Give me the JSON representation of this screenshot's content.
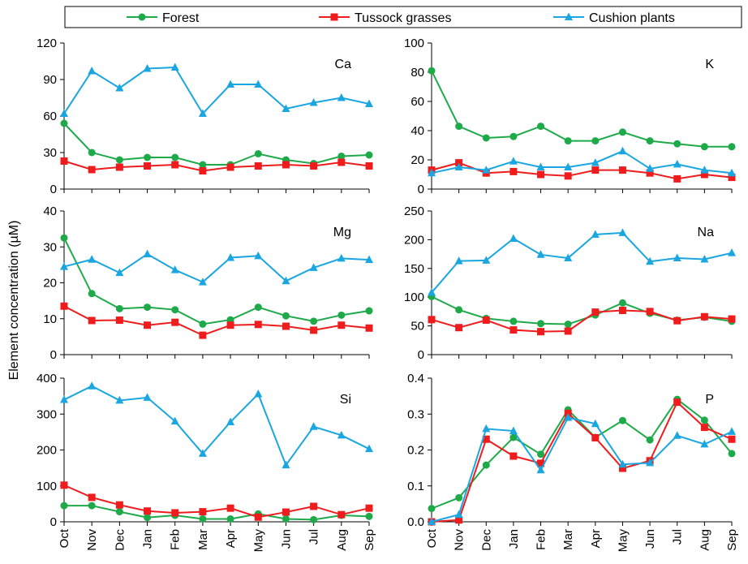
{
  "chart_data": {
    "type": "line",
    "ylabel": "Element concentration (µM)",
    "categories": [
      "Oct",
      "Nov",
      "Dec",
      "Jan",
      "Feb",
      "Mar",
      "Apr",
      "May",
      "Jun",
      "Jul",
      "Aug",
      "Sep"
    ],
    "legend": [
      {
        "name": "Forest",
        "color": "#1faa4a",
        "marker": "circle"
      },
      {
        "name": "Tussock grasses",
        "color": "#ee1c1c",
        "marker": "square"
      },
      {
        "name": "Cushion plants",
        "color": "#1aa6e0",
        "marker": "triangle"
      }
    ],
    "panels": [
      {
        "label": "Ca",
        "ylim": [
          0,
          120
        ],
        "yticks": [
          0,
          30,
          60,
          90,
          120
        ],
        "decimals": 0,
        "series": [
          {
            "name": "Forest",
            "values": [
              54,
              30,
              24,
              26,
              26,
              20,
              20,
              29,
              24,
              21,
              27,
              28
            ]
          },
          {
            "name": "Tussock grasses",
            "values": [
              23,
              16,
              18,
              19,
              20,
              15,
              18,
              19,
              20,
              19,
              22,
              19
            ]
          },
          {
            "name": "Cushion plants",
            "values": [
              62,
              97,
              83,
              99,
              100,
              62,
              86,
              86,
              66,
              71,
              75,
              70
            ]
          }
        ]
      },
      {
        "label": "K",
        "ylim": [
          0,
          100
        ],
        "yticks": [
          0,
          20,
          40,
          60,
          80,
          100
        ],
        "decimals": 0,
        "series": [
          {
            "name": "Forest",
            "values": [
              81,
              43,
              35,
              36,
              43,
              33,
              33,
              39,
              33,
              31,
              29,
              29
            ]
          },
          {
            "name": "Tussock grasses",
            "values": [
              13,
              18,
              11,
              12,
              10,
              9,
              13,
              13,
              11,
              7,
              10,
              8
            ]
          },
          {
            "name": "Cushion plants",
            "values": [
              11,
              15,
              13,
              19,
              15,
              15,
              18,
              26,
              14,
              17,
              13,
              11
            ]
          }
        ]
      },
      {
        "label": "Mg",
        "ylim": [
          0,
          40
        ],
        "yticks": [
          0,
          10,
          20,
          30,
          40
        ],
        "decimals": 0,
        "series": [
          {
            "name": "Forest",
            "values": [
              32.5,
              17,
              12.8,
              13.2,
              12.5,
              8.5,
              9.7,
              13.2,
              10.8,
              9.3,
              11,
              12.2
            ]
          },
          {
            "name": "Tussock grasses",
            "values": [
              13.5,
              9.5,
              9.6,
              8.2,
              9,
              5.4,
              8.2,
              8.4,
              7.9,
              6.8,
              8.2,
              7.4
            ]
          },
          {
            "name": "Cushion plants",
            "values": [
              24.5,
              26.5,
              22.8,
              28,
              23.6,
              20.2,
              27,
              27.5,
              20.5,
              24.2,
              26.8,
              26.4
            ]
          }
        ]
      },
      {
        "label": "Na",
        "ylim": [
          0,
          250
        ],
        "yticks": [
          0,
          50,
          100,
          150,
          200,
          250
        ],
        "decimals": 0,
        "series": [
          {
            "name": "Forest",
            "values": [
              101,
              78,
              63,
              58,
              54,
              53,
              69,
              90,
              72,
              60,
              65,
              58
            ]
          },
          {
            "name": "Tussock grasses",
            "values": [
              61,
              47,
              60,
              43,
              40,
              41,
              74,
              77,
              75,
              59,
              66,
              62
            ]
          },
          {
            "name": "Cushion plants",
            "values": [
              108,
              163,
              164,
              202,
              174,
              168,
              209,
              212,
              162,
              168,
              166,
              177
            ]
          }
        ]
      },
      {
        "label": "Si",
        "ylim": [
          0,
          400
        ],
        "yticks": [
          0,
          100,
          200,
          300,
          400
        ],
        "decimals": 0,
        "series": [
          {
            "name": "Forest",
            "values": [
              45,
              45,
              28,
              12,
              18,
              8,
              8,
              22,
              8,
              6,
              18,
              15
            ]
          },
          {
            "name": "Tussock grasses",
            "values": [
              102,
              68,
              47,
              30,
              25,
              28,
              38,
              13,
              27,
              43,
              20,
              38
            ]
          },
          {
            "name": "Cushion plants",
            "values": [
              340,
              378,
              338,
              346,
              280,
              190,
              278,
              356,
              158,
              265,
              241,
              203
            ]
          }
        ]
      },
      {
        "label": "P",
        "ylim": [
          0,
          0.4
        ],
        "yticks": [
          0,
          0.1,
          0.2,
          0.3,
          0.4
        ],
        "decimals": 1,
        "series": [
          {
            "name": "Forest",
            "values": [
              0.037,
              0.067,
              0.158,
              0.235,
              0.188,
              0.312,
              0.235,
              0.282,
              0.228,
              0.341,
              0.283,
              0.19
            ]
          },
          {
            "name": "Tussock grasses",
            "values": [
              0.0,
              0.005,
              0.23,
              0.183,
              0.163,
              0.302,
              0.234,
              0.149,
              0.17,
              0.333,
              0.263,
              0.23
            ]
          },
          {
            "name": "Cushion plants",
            "values": [
              0.0,
              0.02,
              0.259,
              0.253,
              0.144,
              0.29,
              0.273,
              0.16,
              0.164,
              0.24,
              0.216,
              0.251
            ]
          }
        ]
      }
    ]
  }
}
